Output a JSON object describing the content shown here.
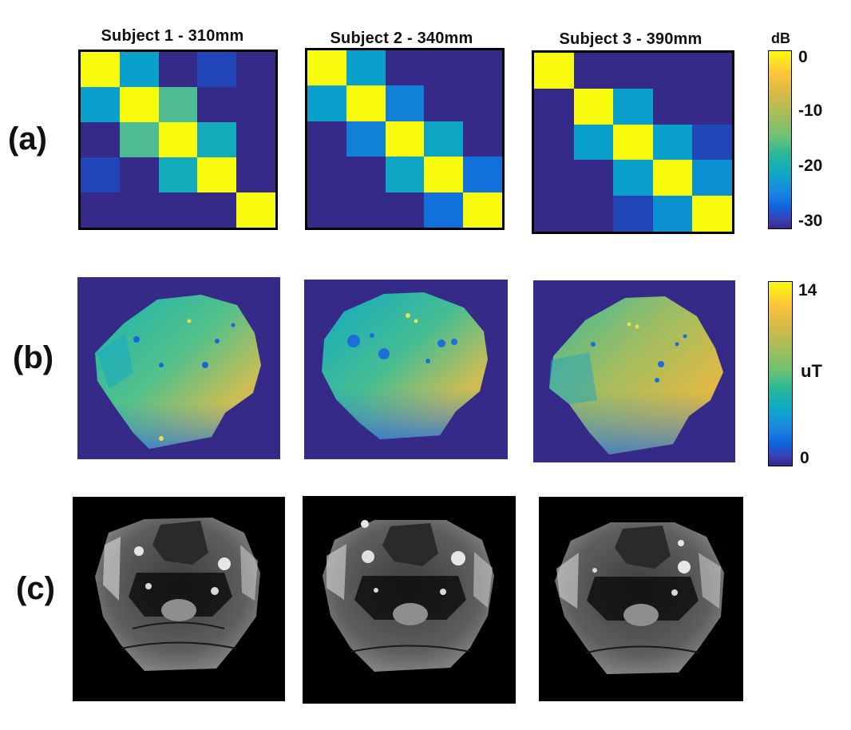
{
  "subjects": [
    {
      "title": "Subject 1 - 310mm"
    },
    {
      "title": "Subject 2 - 340mm"
    },
    {
      "title": "Subject 3 - 390mm"
    }
  ],
  "row_labels": {
    "a": "(a)",
    "b": "(b)",
    "c": "(c)"
  },
  "colorbar_a": {
    "unit": "dB",
    "ticks": [
      "0",
      "-10",
      "-20",
      "-30"
    ],
    "min": -30,
    "max": 0
  },
  "colorbar_b": {
    "unit": "uT",
    "ticks": [
      "14",
      "0"
    ],
    "min": 0,
    "max": 14
  },
  "coupling_matrices_db": [
    [
      [
        0,
        -18,
        -30,
        -28,
        -30
      ],
      [
        -18,
        0,
        -12,
        -30,
        -30
      ],
      [
        -30,
        -12,
        0,
        -16,
        -30
      ],
      [
        -28,
        -30,
        -16,
        0,
        -30
      ],
      [
        -30,
        -30,
        -30,
        -30,
        0
      ]
    ],
    [
      [
        0,
        -18,
        -30,
        -30,
        -30
      ],
      [
        -18,
        0,
        -22,
        -30,
        -30
      ],
      [
        -30,
        -22,
        0,
        -17,
        -30
      ],
      [
        -30,
        -30,
        -17,
        0,
        -24
      ],
      [
        -30,
        -30,
        -30,
        -24,
        0
      ]
    ],
    [
      [
        0,
        -30,
        -30,
        -30,
        -30
      ],
      [
        -30,
        0,
        -18,
        -30,
        -30
      ],
      [
        -30,
        -18,
        0,
        -18,
        -28
      ],
      [
        -30,
        -30,
        -18,
        0,
        -20
      ],
      [
        -30,
        -30,
        -28,
        -20,
        0
      ]
    ]
  ],
  "colors": {
    "parula_low": "#352a87",
    "parula_high": "#f9fb0e"
  }
}
